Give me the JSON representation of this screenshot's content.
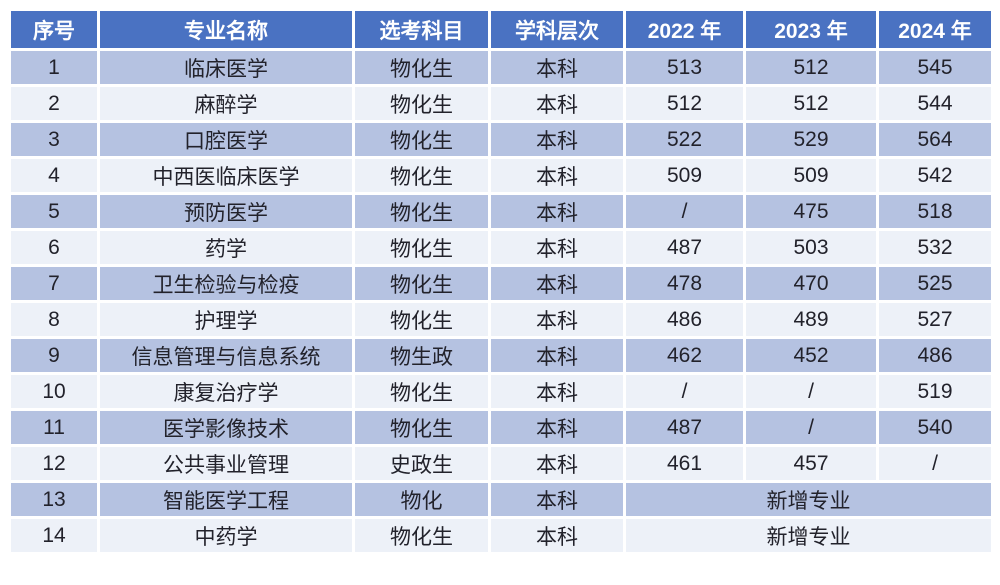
{
  "theme": {
    "page_background": "#FFFFFF",
    "header_bg": "#4A72C2",
    "header_text": "#FFFFFF",
    "row_odd_bg": "#B5C2E1",
    "row_even_bg": "#EDF1F8",
    "body_text": "#22222B",
    "grid_gap_color": "#FFFFFF"
  },
  "chart_data": {
    "type": "table",
    "title": "",
    "legend_position": "none",
    "grid": "white gaps between cells, alternating row shading",
    "columns": [
      "序号",
      "专业名称",
      "选考科目",
      "学科层次",
      "2022 年",
      "2023 年",
      "2024 年"
    ],
    "rows": [
      [
        "1",
        "临床医学",
        "物化生",
        "本科",
        "513",
        "512",
        "545"
      ],
      [
        "2",
        "麻醉学",
        "物化生",
        "本科",
        "512",
        "512",
        "544"
      ],
      [
        "3",
        "口腔医学",
        "物化生",
        "本科",
        "522",
        "529",
        "564"
      ],
      [
        "4",
        "中西医临床医学",
        "物化生",
        "本科",
        "509",
        "509",
        "542"
      ],
      [
        "5",
        "预防医学",
        "物化生",
        "本科",
        "/",
        "475",
        "518"
      ],
      [
        "6",
        "药学",
        "物化生",
        "本科",
        "487",
        "503",
        "532"
      ],
      [
        "7",
        "卫生检验与检疫",
        "物化生",
        "本科",
        "478",
        "470",
        "525"
      ],
      [
        "8",
        "护理学",
        "物化生",
        "本科",
        "486",
        "489",
        "527"
      ],
      [
        "9",
        "信息管理与信息系统",
        "物生政",
        "本科",
        "462",
        "452",
        "486"
      ],
      [
        "10",
        "康复治疗学",
        "物化生",
        "本科",
        "/",
        "/",
        "519"
      ],
      [
        "11",
        "医学影像技术",
        "物化生",
        "本科",
        "487",
        "/",
        "540"
      ],
      [
        "12",
        "公共事业管理",
        "史政生",
        "本科",
        "461",
        "457",
        "/"
      ],
      [
        "13",
        "智能医学工程",
        "物化",
        "本科",
        {
          "colspan": 3,
          "text": "新增专业"
        }
      ],
      [
        "14",
        "中药学",
        "物化生",
        "本科",
        {
          "colspan": 3,
          "text": "新增专业"
        }
      ]
    ]
  }
}
